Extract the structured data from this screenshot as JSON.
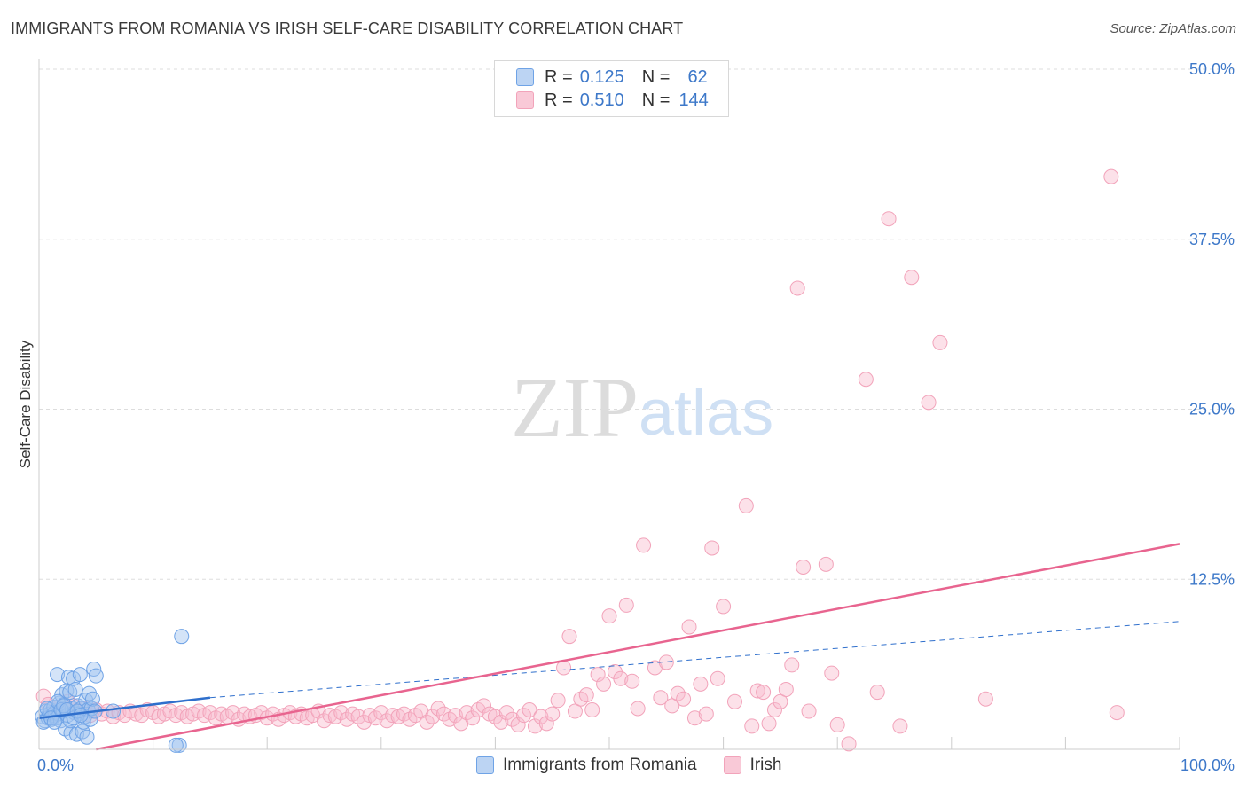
{
  "title": "IMMIGRANTS FROM ROMANIA VS IRISH SELF-CARE DISABILITY CORRELATION CHART",
  "source": "Source: ZipAtlas.com",
  "watermark": {
    "zip": "ZIP",
    "atlas": "atlas"
  },
  "legend": {
    "r_label": "R =",
    "n_label": "N =",
    "entries": [
      {
        "r": "0.125",
        "n": "62"
      },
      {
        "r": "0.510",
        "n": "144"
      }
    ]
  },
  "chart_data": {
    "type": "scatter",
    "title": "IMMIGRANTS FROM ROMANIA VS IRISH SELF-CARE DISABILITY CORRELATION CHART",
    "xlabel": "",
    "ylabel": "Self-Care Disability",
    "xlim": [
      0,
      100
    ],
    "ylim": [
      0,
      50
    ],
    "x_tick_labels": [
      "0.0%",
      "100.0%"
    ],
    "y_ticks": [
      12.5,
      25.0,
      37.5,
      50.0
    ],
    "y_tick_labels": [
      "12.5%",
      "25.0%",
      "37.5%",
      "50.0%"
    ],
    "grid": true,
    "legend_position": "top-center",
    "colors": {
      "romania": "#6fa3e6",
      "irish": "#f2a3ba",
      "romania_line": "#2f6fcc",
      "irish_line": "#e8648f",
      "tick_label": "#3d78c9"
    },
    "series": [
      {
        "name": "Immigrants from Romania",
        "r": 0.125,
        "n": 62,
        "trend": {
          "x0": 0,
          "y0": 2.3,
          "x1": 15,
          "y1": 3.8,
          "dashed_to": {
            "x": 100,
            "y": 9.4
          }
        },
        "points": [
          [
            0.3,
            2.4
          ],
          [
            0.5,
            2.1
          ],
          [
            0.6,
            2.8
          ],
          [
            0.8,
            2.3
          ],
          [
            0.9,
            2.6
          ],
          [
            1.0,
            2.9
          ],
          [
            1.1,
            2.2
          ],
          [
            1.2,
            2.5
          ],
          [
            1.3,
            3.1
          ],
          [
            1.4,
            2.7
          ],
          [
            1.5,
            2.3
          ],
          [
            1.6,
            5.5
          ],
          [
            1.7,
            2.6
          ],
          [
            1.8,
            3.4
          ],
          [
            1.9,
            2.1
          ],
          [
            2.0,
            4.0
          ],
          [
            2.1,
            2.8
          ],
          [
            2.2,
            3.3
          ],
          [
            2.3,
            1.5
          ],
          [
            2.4,
            4.3
          ],
          [
            2.5,
            2.5
          ],
          [
            2.6,
            5.3
          ],
          [
            2.7,
            4.2
          ],
          [
            2.8,
            1.2
          ],
          [
            2.9,
            3.0
          ],
          [
            3.0,
            5.2
          ],
          [
            3.1,
            2.7
          ],
          [
            3.2,
            4.4
          ],
          [
            3.3,
            1.1
          ],
          [
            3.4,
            3.2
          ],
          [
            3.5,
            2.6
          ],
          [
            3.6,
            5.5
          ],
          [
            3.7,
            3.0
          ],
          [
            3.8,
            1.3
          ],
          [
            3.9,
            2.0
          ],
          [
            4.0,
            2.4
          ],
          [
            4.1,
            3.6
          ],
          [
            4.2,
            0.9
          ],
          [
            4.3,
            2.9
          ],
          [
            4.4,
            4.1
          ],
          [
            4.5,
            2.2
          ],
          [
            4.6,
            3.0
          ],
          [
            4.7,
            3.7
          ],
          [
            4.8,
            5.9
          ],
          [
            4.9,
            2.8
          ],
          [
            5.0,
            5.4
          ],
          [
            0.4,
            2.0
          ],
          [
            0.7,
            3.0
          ],
          [
            1.05,
            2.3
          ],
          [
            1.35,
            2.0
          ],
          [
            1.65,
            3.5
          ],
          [
            1.95,
            2.9
          ],
          [
            2.15,
            3.2
          ],
          [
            2.45,
            2.9
          ],
          [
            2.75,
            2.1
          ],
          [
            3.05,
            2.3
          ],
          [
            3.35,
            2.8
          ],
          [
            3.65,
            2.5
          ],
          [
            12.5,
            8.3
          ],
          [
            12.3,
            0.3
          ],
          [
            12.0,
            0.3
          ],
          [
            6.5,
            2.8
          ]
        ]
      },
      {
        "name": "Irish",
        "r": 0.51,
        "n": 144,
        "trend": {
          "x0": 5,
          "y0": 0,
          "x1": 100,
          "y1": 15.1
        },
        "points": [
          [
            0.4,
            3.9
          ],
          [
            0.8,
            3.3
          ],
          [
            1.2,
            2.6
          ],
          [
            1.6,
            3.1
          ],
          [
            2.0,
            2.9
          ],
          [
            2.5,
            3.5
          ],
          [
            3.0,
            3.2
          ],
          [
            3.5,
            2.8
          ],
          [
            4.0,
            3.0
          ],
          [
            4.5,
            2.5
          ],
          [
            5.0,
            2.9
          ],
          [
            5.5,
            2.6
          ],
          [
            6.0,
            2.8
          ],
          [
            6.5,
            2.4
          ],
          [
            7.0,
            2.7
          ],
          [
            7.5,
            2.5
          ],
          [
            8.0,
            2.8
          ],
          [
            8.5,
            2.6
          ],
          [
            9.0,
            2.5
          ],
          [
            9.5,
            2.9
          ],
          [
            10.0,
            2.7
          ],
          [
            10.5,
            2.4
          ],
          [
            11.0,
            2.6
          ],
          [
            11.5,
            2.8
          ],
          [
            12.0,
            2.5
          ],
          [
            12.5,
            2.7
          ],
          [
            13.0,
            2.4
          ],
          [
            13.5,
            2.6
          ],
          [
            14.0,
            2.8
          ],
          [
            14.5,
            2.5
          ],
          [
            15.0,
            2.7
          ],
          [
            15.5,
            2.3
          ],
          [
            16.0,
            2.6
          ],
          [
            16.5,
            2.4
          ],
          [
            17.0,
            2.7
          ],
          [
            17.5,
            2.2
          ],
          [
            18.0,
            2.6
          ],
          [
            18.5,
            2.4
          ],
          [
            19.0,
            2.5
          ],
          [
            19.5,
            2.7
          ],
          [
            20.0,
            2.3
          ],
          [
            20.5,
            2.6
          ],
          [
            21.0,
            2.2
          ],
          [
            21.5,
            2.5
          ],
          [
            22.0,
            2.7
          ],
          [
            22.5,
            2.4
          ],
          [
            23.0,
            2.6
          ],
          [
            23.5,
            2.3
          ],
          [
            24.0,
            2.5
          ],
          [
            24.5,
            2.8
          ],
          [
            25.0,
            2.1
          ],
          [
            25.5,
            2.5
          ],
          [
            26.0,
            2.4
          ],
          [
            26.5,
            2.7
          ],
          [
            27.0,
            2.2
          ],
          [
            27.5,
            2.6
          ],
          [
            28.0,
            2.4
          ],
          [
            28.5,
            2.0
          ],
          [
            29.0,
            2.5
          ],
          [
            29.5,
            2.3
          ],
          [
            30.0,
            2.7
          ],
          [
            30.5,
            2.1
          ],
          [
            31.0,
            2.5
          ],
          [
            31.5,
            2.4
          ],
          [
            32.0,
            2.6
          ],
          [
            32.5,
            2.2
          ],
          [
            33.0,
            2.5
          ],
          [
            33.5,
            2.8
          ],
          [
            34.0,
            2.0
          ],
          [
            34.5,
            2.4
          ],
          [
            35.0,
            3.0
          ],
          [
            35.5,
            2.6
          ],
          [
            36.0,
            2.2
          ],
          [
            36.5,
            2.5
          ],
          [
            37.0,
            1.9
          ],
          [
            37.5,
            2.7
          ],
          [
            38.0,
            2.3
          ],
          [
            38.5,
            2.9
          ],
          [
            39.0,
            3.2
          ],
          [
            39.5,
            2.6
          ],
          [
            40.0,
            2.4
          ],
          [
            40.5,
            2.0
          ],
          [
            41.0,
            2.7
          ],
          [
            41.5,
            2.2
          ],
          [
            42.0,
            1.8
          ],
          [
            42.5,
            2.5
          ],
          [
            43.0,
            2.9
          ],
          [
            43.5,
            1.7
          ],
          [
            44.0,
            2.4
          ],
          [
            44.5,
            1.9
          ],
          [
            45.0,
            2.6
          ],
          [
            45.5,
            3.6
          ],
          [
            46.0,
            6.0
          ],
          [
            46.5,
            8.3
          ],
          [
            47.0,
            2.8
          ],
          [
            47.5,
            3.7
          ],
          [
            48.0,
            4.0
          ],
          [
            48.5,
            2.9
          ],
          [
            49.0,
            5.5
          ],
          [
            49.5,
            4.8
          ],
          [
            50.0,
            9.8
          ],
          [
            50.5,
            5.7
          ],
          [
            51.0,
            5.2
          ],
          [
            51.5,
            10.6
          ],
          [
            52.0,
            5.0
          ],
          [
            52.5,
            3.0
          ],
          [
            53.0,
            15.0
          ],
          [
            54.0,
            6.0
          ],
          [
            54.5,
            3.8
          ],
          [
            55.0,
            6.4
          ],
          [
            55.5,
            3.2
          ],
          [
            56.0,
            4.1
          ],
          [
            56.5,
            3.7
          ],
          [
            57.0,
            9.0
          ],
          [
            57.5,
            2.3
          ],
          [
            58.0,
            4.8
          ],
          [
            58.5,
            2.6
          ],
          [
            59.0,
            14.8
          ],
          [
            59.5,
            5.2
          ],
          [
            60.0,
            10.5
          ],
          [
            61.0,
            3.5
          ],
          [
            62.0,
            17.9
          ],
          [
            62.5,
            1.7
          ],
          [
            63.0,
            4.3
          ],
          [
            63.5,
            4.2
          ],
          [
            64.0,
            1.9
          ],
          [
            64.5,
            2.9
          ],
          [
            65.0,
            3.5
          ],
          [
            65.5,
            4.4
          ],
          [
            66.0,
            6.2
          ],
          [
            66.5,
            33.9
          ],
          [
            67.0,
            13.4
          ],
          [
            67.5,
            2.8
          ],
          [
            69.0,
            13.6
          ],
          [
            69.5,
            5.6
          ],
          [
            70.0,
            1.8
          ],
          [
            71.0,
            0.4
          ],
          [
            72.5,
            27.2
          ],
          [
            73.5,
            4.2
          ],
          [
            74.5,
            39.0
          ],
          [
            75.5,
            1.7
          ],
          [
            76.5,
            34.7
          ],
          [
            78.0,
            25.5
          ],
          [
            79.0,
            29.9
          ],
          [
            83.0,
            3.7
          ],
          [
            94.0,
            42.1
          ],
          [
            94.5,
            2.7
          ],
          [
            4.7,
            2.8
          ]
        ]
      }
    ]
  }
}
